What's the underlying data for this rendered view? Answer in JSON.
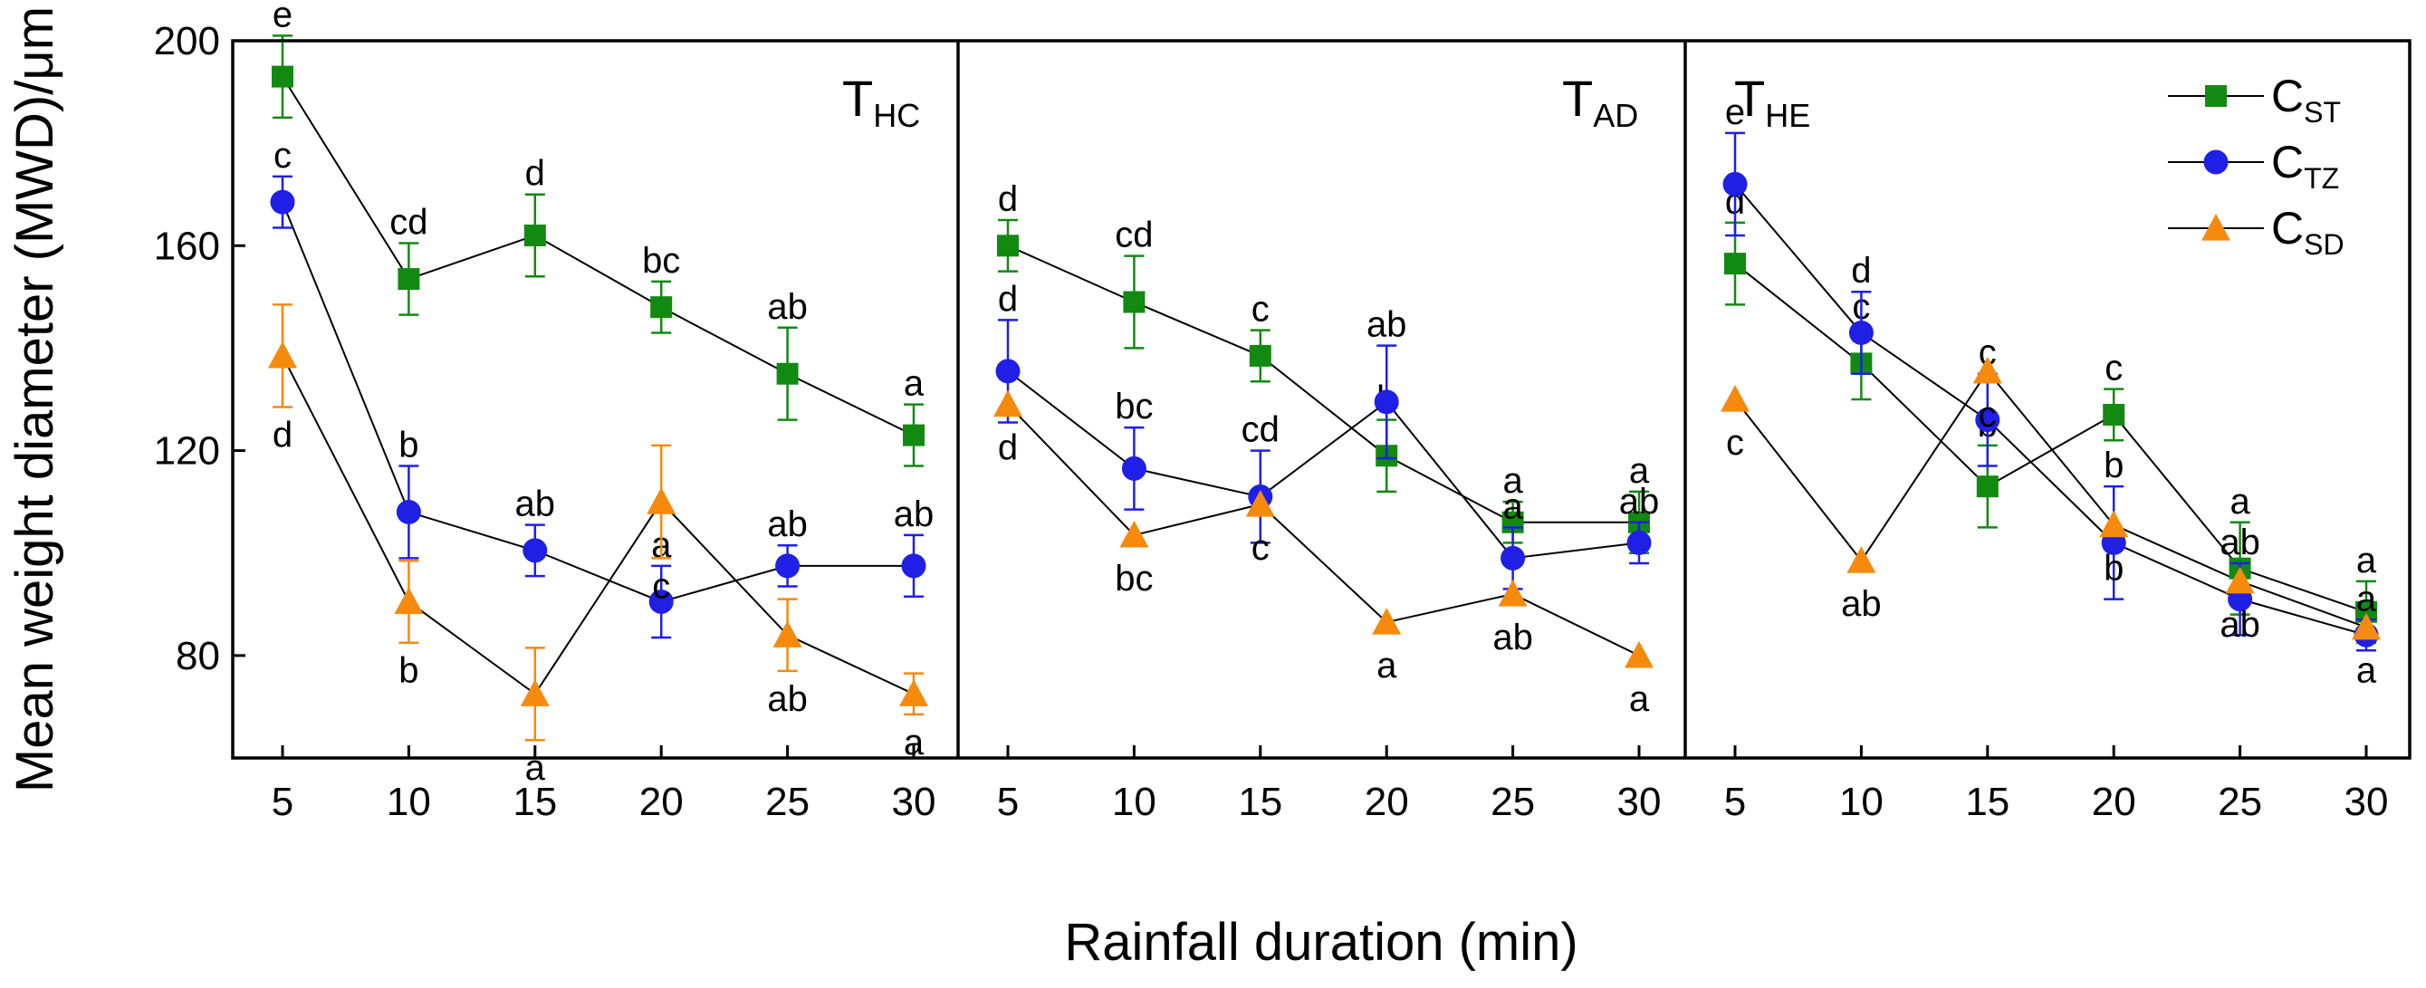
{
  "chart_data": {
    "type": "line",
    "xlabel": "Rainfall duration (min)",
    "ylabel": "Mean weight diameter (MWD)/μm",
    "ylim": [
      60,
      200
    ],
    "yticks": [
      80,
      120,
      160,
      200
    ],
    "x": [
      5,
      10,
      15,
      20,
      25,
      30
    ],
    "legend_position": "top-right",
    "legend": [
      {
        "key": "ST",
        "main": "C",
        "sub": "ST",
        "marker": "square",
        "color": "#128a12"
      },
      {
        "key": "TZ",
        "main": "C",
        "sub": "TZ",
        "marker": "circle",
        "color": "#1f1fe6"
      },
      {
        "key": "SD",
        "main": "C",
        "sub": "SD",
        "marker": "triangle",
        "color": "#f58a0d"
      }
    ],
    "panels": [
      {
        "label_main": "T",
        "label_sub": "HC",
        "series": {
          "ST": {
            "values": [
              193,
              153.5,
              162,
              148,
              135,
              123
            ],
            "err": [
              8,
              7,
              8,
              5,
              9,
              6
            ],
            "letters": [
              "e",
              "cd",
              "d",
              "bc",
              "ab",
              "a"
            ]
          },
          "TZ": {
            "values": [
              168.5,
              108,
              100.5,
              90.5,
              97.5,
              97.5
            ],
            "err": [
              5,
              9,
              5,
              7,
              4,
              6
            ],
            "letters": [
              "c",
              "b",
              "ab",
              "a",
              "ab",
              "ab"
            ]
          },
          "SD": {
            "values": [
              138.5,
              90.5,
              72.5,
              110,
              84,
              72.5
            ],
            "err": [
              10,
              8,
              9,
              11,
              7,
              4
            ],
            "letters": [
              "d",
              "b",
              "a",
              "c",
              "ab",
              "a"
            ]
          }
        }
      },
      {
        "label_main": "T",
        "label_sub": "AD",
        "series": {
          "ST": {
            "values": [
              160,
              149,
              138.5,
              119,
              106,
              106
            ],
            "err": [
              5,
              9,
              5,
              7,
              4,
              6
            ],
            "letters": [
              "d",
              "cd",
              "c",
              "b",
              "a",
              "a"
            ]
          },
          "TZ": {
            "values": [
              135.5,
              116.5,
              111,
              129.5,
              99,
              102
            ],
            "err": [
              10,
              8,
              9,
              11,
              6,
              4
            ],
            "letters": [
              "d",
              "bc",
              "cd",
              "ab",
              "a",
              "ab"
            ]
          },
          "SD": {
            "values": [
              129,
              103.5,
              109.5,
              86.5,
              92,
              80
            ],
            "err": [
              0,
              0,
              0,
              0,
              0,
              0
            ],
            "letters": [
              "d",
              "bc",
              "c",
              "a",
              "ab",
              "a"
            ]
          }
        }
      },
      {
        "label_main": "T",
        "label_sub": "HE",
        "series": {
          "ST": {
            "values": [
              156.5,
              137,
              113,
              127,
              97,
              88.5
            ],
            "err": [
              8,
              7,
              8,
              5,
              9,
              6
            ],
            "letters": [
              "d",
              "c",
              "b",
              "c",
              "a",
              "a"
            ]
          },
          "TZ": {
            "values": [
              172,
              143,
              126,
              102,
              91,
              84
            ],
            "err": [
              10,
              8,
              9,
              11,
              7,
              3
            ],
            "letters": [
              "e",
              "d",
              "c",
              "b",
              "ab",
              "a"
            ]
          },
          "SD": {
            "values": [
              130,
              98.5,
              135.5,
              105.5,
              94.5,
              85.5
            ],
            "err": [
              0,
              0,
              0,
              0,
              0,
              0
            ],
            "letters": [
              "c",
              "ab",
              "c",
              "b",
              "ab",
              "a"
            ]
          }
        }
      }
    ]
  }
}
